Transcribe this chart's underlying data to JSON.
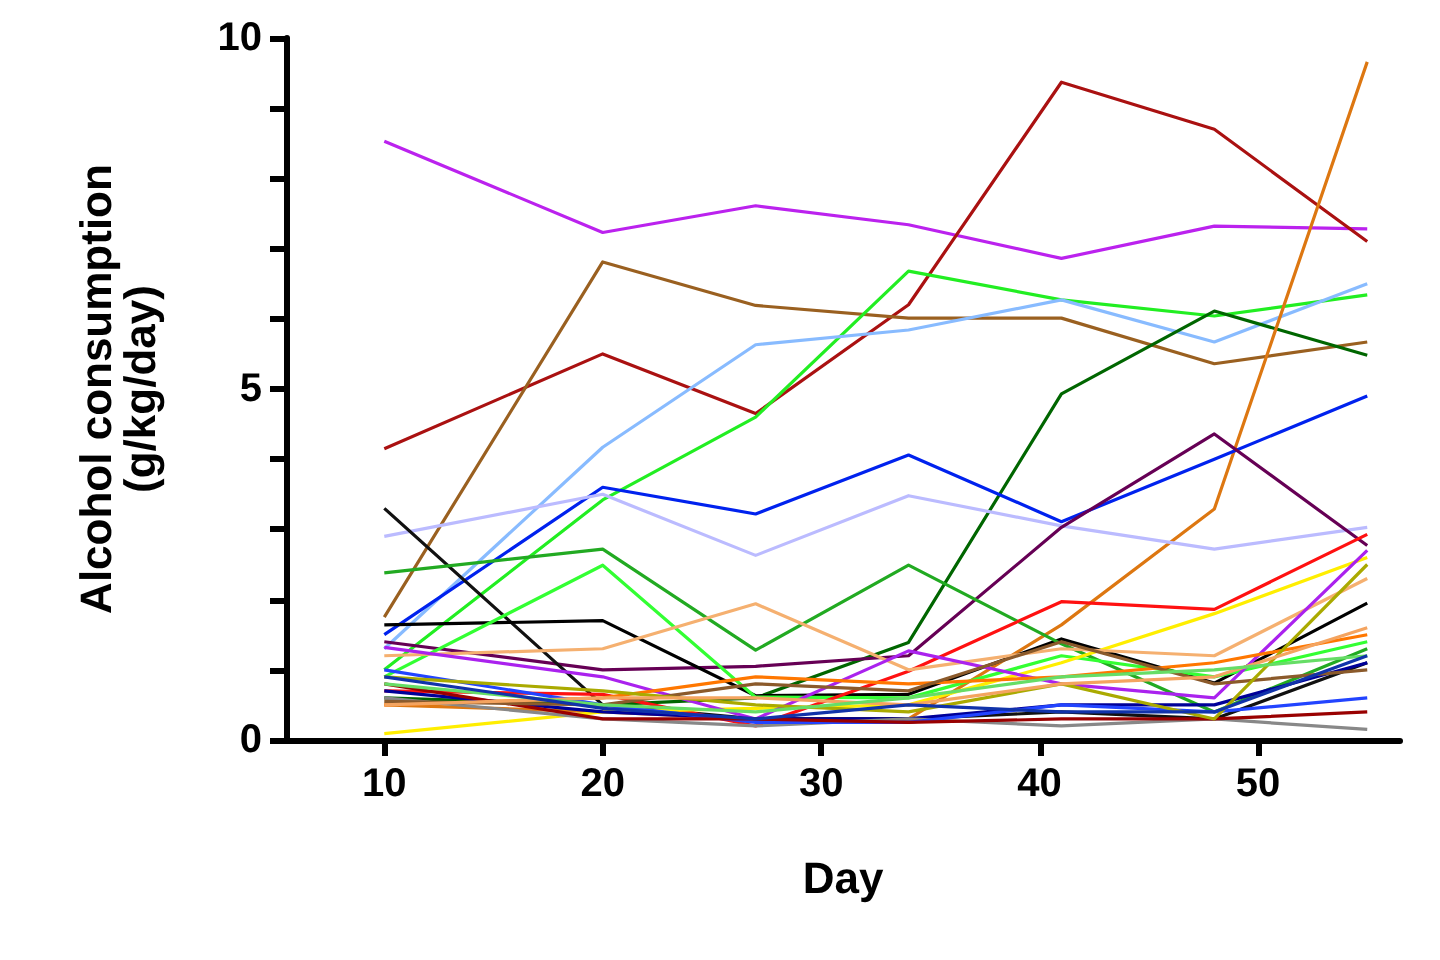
{
  "chart_data": {
    "type": "line",
    "xlabel": "Day",
    "ylabel": "Alcohol consumption\n(g/kg/day)",
    "x": [
      10,
      20,
      27,
      34,
      41,
      48,
      55
    ],
    "xlim": [
      5.5,
      56.5
    ],
    "xticks": [
      10,
      20,
      30,
      40,
      50
    ],
    "ylim": [
      0,
      10
    ],
    "yticks": [
      0,
      {
        "value": 1,
        "label": null
      },
      {
        "value": 2,
        "label": null
      },
      {
        "value": 3,
        "label": null
      },
      {
        "value": 4,
        "label": null
      },
      5,
      {
        "value": 6,
        "label": null
      },
      {
        "value": 7,
        "label": null
      },
      {
        "value": 8,
        "label": null
      },
      {
        "value": 9,
        "label": null
      },
      10
    ],
    "grid": false,
    "marker": "none",
    "line_style": "solid",
    "series": [
      {
        "color": "#bb22ee",
        "values": [
          8.53,
          7.23,
          7.61,
          7.34,
          6.86,
          7.32,
          7.28
        ]
      },
      {
        "color": "#aa1111",
        "values": [
          4.15,
          5.5,
          4.65,
          6.2,
          9.37,
          8.7,
          7.1
        ]
      },
      {
        "color": "#9a6020",
        "values": [
          1.75,
          6.81,
          6.19,
          6.01,
          6.01,
          5.36,
          5.67
        ]
      },
      {
        "color": "#22ee22",
        "values": [
          1.0,
          3.42,
          4.6,
          6.68,
          6.27,
          6.04,
          6.34
        ]
      },
      {
        "color": "#88bbff",
        "values": [
          1.3,
          4.17,
          5.63,
          5.84,
          6.27,
          5.67,
          6.5
        ]
      },
      {
        "color": "#006600",
        "values": [
          0.6,
          0.5,
          0.6,
          1.39,
          4.93,
          6.11,
          5.48
        ]
      },
      {
        "color": "#dd7711",
        "values": [
          0.5,
          0.4,
          0.3,
          0.3,
          1.64,
          3.29,
          9.66
        ]
      },
      {
        "color": "#0022ee",
        "values": [
          1.5,
          3.6,
          3.22,
          4.06,
          3.11,
          4.0,
          4.9
        ]
      },
      {
        "color": "#bbbbff",
        "values": [
          2.9,
          3.5,
          2.63,
          3.48,
          3.05,
          2.72,
          3.03
        ]
      },
      {
        "color": "#660055",
        "values": [
          1.4,
          1.0,
          1.05,
          1.2,
          3.03,
          4.36,
          2.77
        ]
      },
      {
        "color": "#111111",
        "values": [
          3.3,
          0.5,
          0.3,
          0.3,
          0.4,
          0.3,
          1.1
        ]
      },
      {
        "color": "#000000",
        "values": [
          1.64,
          1.7,
          0.63,
          0.65,
          1.44,
          0.81,
          1.95
        ]
      },
      {
        "color": "#22aa22",
        "values": [
          2.38,
          2.72,
          1.28,
          2.49,
          1.37,
          0.4,
          1.3
        ]
      },
      {
        "color": "#33ff33",
        "values": [
          0.9,
          2.49,
          0.61,
          0.6,
          1.2,
          0.9,
          1.4
        ]
      },
      {
        "color": "#ff1111",
        "values": [
          0.7,
          0.65,
          0.2,
          0.98,
          1.97,
          1.86,
          2.93
        ]
      },
      {
        "color": "#ffee00",
        "values": [
          0.09,
          0.4,
          0.45,
          0.5,
          1.1,
          1.8,
          2.6
        ]
      },
      {
        "color": "#f5b070",
        "values": [
          1.2,
          1.3,
          1.94,
          1.0,
          1.3,
          1.2,
          2.3
        ]
      },
      {
        "color": "#aa22ee",
        "values": [
          1.32,
          0.9,
          0.3,
          1.27,
          0.8,
          0.6,
          2.7
        ]
      },
      {
        "color": "#ff7700",
        "values": [
          0.5,
          0.6,
          0.9,
          0.8,
          0.9,
          1.1,
          1.5
        ]
      },
      {
        "color": "#000099",
        "values": [
          0.7,
          0.4,
          0.3,
          0.3,
          0.5,
          0.5,
          1.1
        ]
      },
      {
        "color": "#888888",
        "values": [
          0.6,
          0.3,
          0.2,
          0.3,
          0.2,
          0.3,
          0.15
        ]
      },
      {
        "color": "#2244ff",
        "values": [
          1.0,
          0.5,
          0.25,
          0.25,
          0.5,
          0.4,
          0.6
        ]
      },
      {
        "color": "#990000",
        "values": [
          0.8,
          0.3,
          0.3,
          0.25,
          0.3,
          0.3,
          0.4
        ]
      },
      {
        "color": "#8b5a2b",
        "values": [
          0.55,
          0.5,
          0.8,
          0.7,
          1.4,
          0.8,
          1.0
        ]
      },
      {
        "color": "#aaaa00",
        "values": [
          0.9,
          0.7,
          0.5,
          0.4,
          0.8,
          0.3,
          2.5
        ]
      },
      {
        "color": "#f4a460",
        "values": [
          0.5,
          0.6,
          0.6,
          0.5,
          0.8,
          0.9,
          1.6
        ]
      },
      {
        "color": "#66dd66",
        "values": [
          0.8,
          0.5,
          0.4,
          0.6,
          0.9,
          1.0,
          1.2
        ]
      },
      {
        "color": "#1133aa",
        "values": [
          0.9,
          0.45,
          0.3,
          0.5,
          0.4,
          0.4,
          1.2
        ]
      }
    ]
  }
}
